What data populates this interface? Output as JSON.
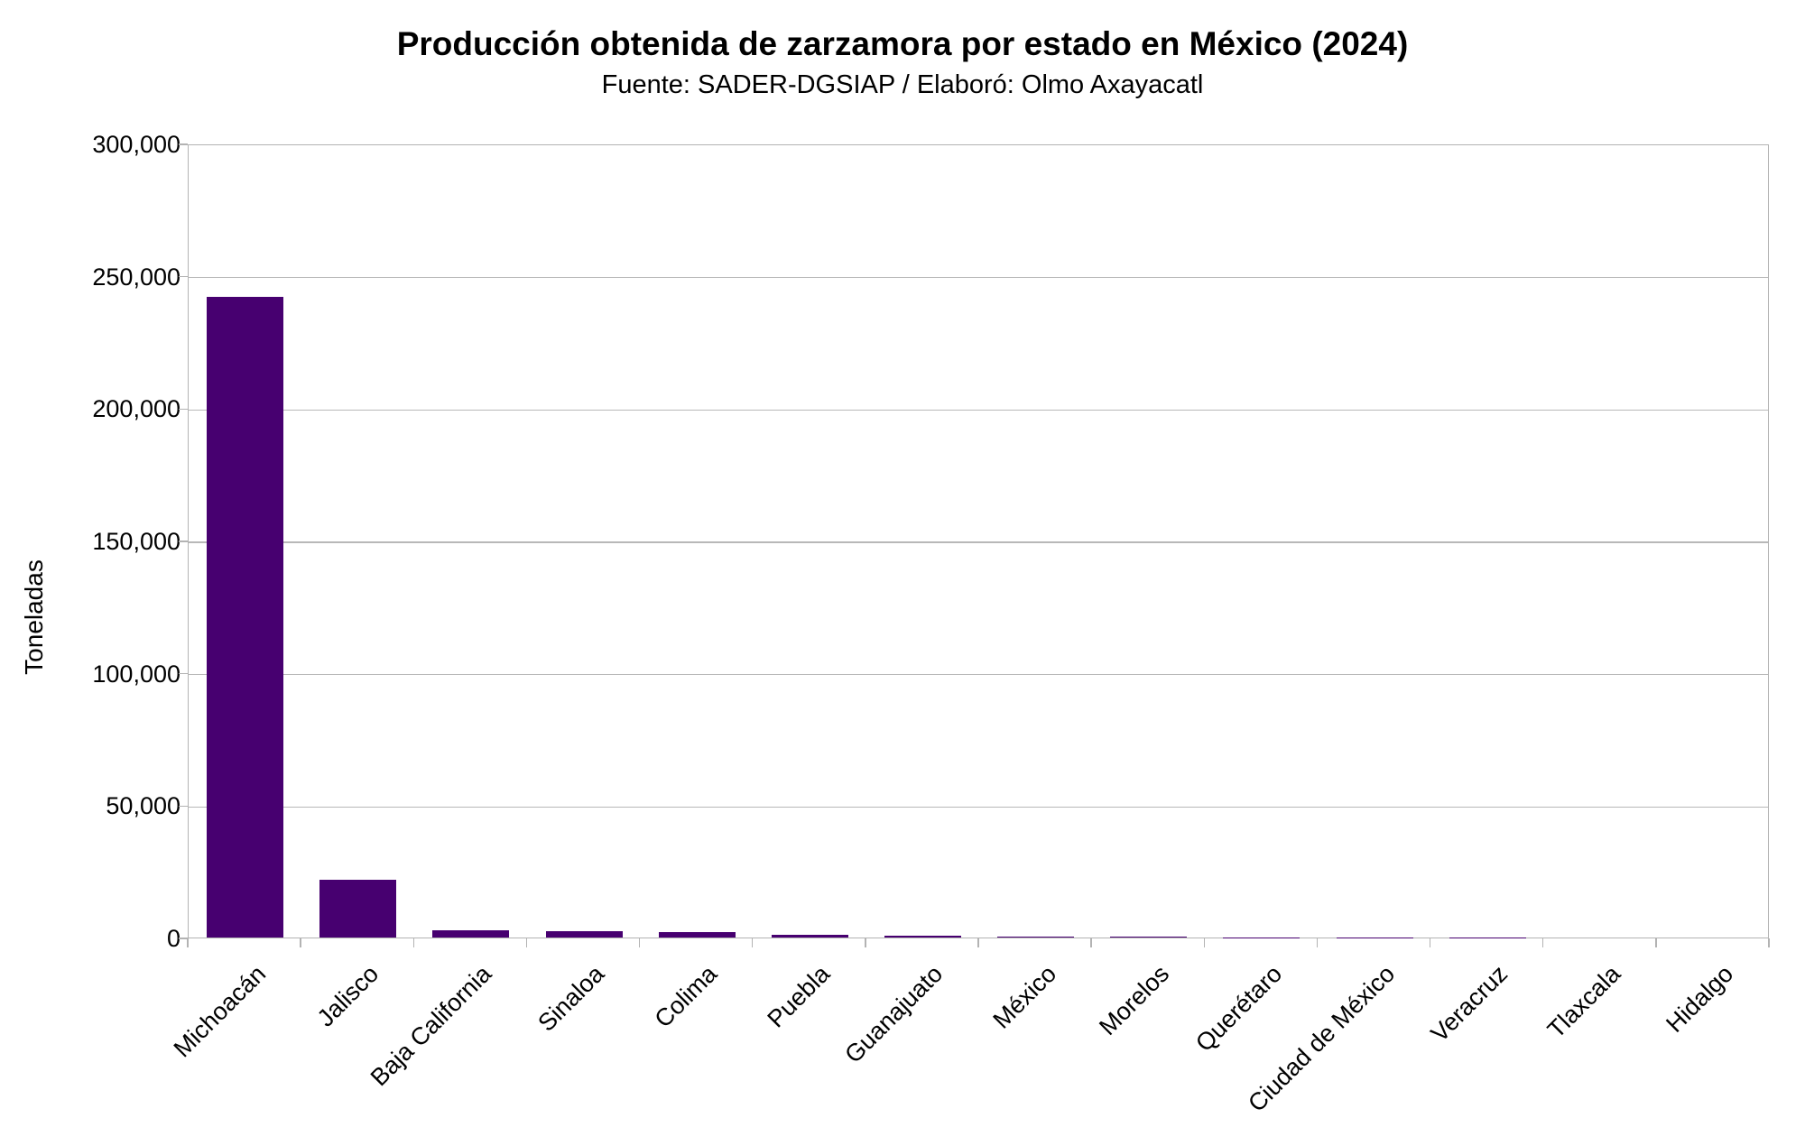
{
  "chart_data": {
    "type": "bar",
    "title": "Producción obtenida de zarzamora por estado en México (2024)",
    "subtitle": "Fuente: SADER-DGSIAP / Elaboró: Olmo Axayacatl",
    "ylabel": "Toneladas",
    "xlabel": "",
    "categories": [
      "Michoacán",
      "Jalisco",
      "Baja California",
      "Sinaloa",
      "Colima",
      "Puebla",
      "Guanajuato",
      "México",
      "Morelos",
      "Querétaro",
      "Ciudad de México",
      "Veracruz",
      "Tlaxcala",
      "Hidalgo"
    ],
    "values": [
      242000,
      21700,
      2900,
      2550,
      2200,
      1150,
      680,
      450,
      250,
      120,
      60,
      40,
      20,
      10
    ],
    "ylim": [
      0,
      300000
    ],
    "ytick_interval": 50000,
    "ytick_labels": [
      "0",
      "50,000",
      "100,000",
      "150,000",
      "200,000",
      "250,000",
      "300,000"
    ],
    "grid": "horizontal major gridlines only",
    "legend_position": "none",
    "bar_color": "#470070",
    "axis_color": "#b3b3b3",
    "text_color": "#000000",
    "x_labels_rotation_deg": 45
  }
}
